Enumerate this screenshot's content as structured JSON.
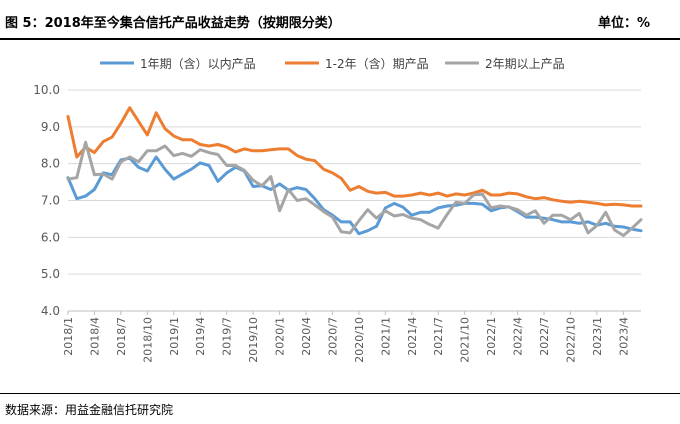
{
  "header": {
    "title": "图 5：2018年至今集合信托产品收益走势（按期限分类）",
    "unit": "单位：%"
  },
  "footer": {
    "source": "数据来源：用益金融信托研究院"
  },
  "colors": {
    "blue": "#5B9BD5",
    "orange": "#ED7D31",
    "gray": "#A5A5A5",
    "grid": "#D9D9D9",
    "axis": "#BFBFBF",
    "text": "#595959"
  },
  "chart_data": {
    "type": "line",
    "ylim": [
      4.0,
      10.0
    ],
    "yticks": [
      "4.0",
      "5.0",
      "6.0",
      "7.0",
      "8.0",
      "9.0",
      "10.0"
    ],
    "legend_position": "top",
    "x": [
      "2018/1",
      "2018/2",
      "2018/3",
      "2018/4",
      "2018/5",
      "2018/6",
      "2018/7",
      "2018/8",
      "2018/9",
      "2018/10",
      "2018/11",
      "2018/12",
      "2019/1",
      "2019/2",
      "2019/3",
      "2019/4",
      "2019/5",
      "2019/6",
      "2019/7",
      "2019/8",
      "2019/9",
      "2019/10",
      "2019/11",
      "2019/12",
      "2020/1",
      "2020/2",
      "2020/3",
      "2020/4",
      "2020/5",
      "2020/6",
      "2020/7",
      "2020/8",
      "2020/9",
      "2020/10",
      "2020/11",
      "2020/12",
      "2021/1",
      "2021/2",
      "2021/3",
      "2021/4",
      "2021/5",
      "2021/6",
      "2021/7",
      "2021/8",
      "2021/9",
      "2021/10",
      "2021/11",
      "2021/12",
      "2022/1",
      "2022/2",
      "2022/3",
      "2022/4",
      "2022/5",
      "2022/6",
      "2022/7",
      "2022/8",
      "2022/9",
      "2022/10",
      "2022/11",
      "2022/12",
      "2023/1",
      "2023/2",
      "2023/3",
      "2023/4",
      "2023/5",
      "2023/6"
    ],
    "x_tick_labels": [
      "2018/1",
      "2018/4",
      "2018/7",
      "2018/10",
      "2019/1",
      "2019/4",
      "2019/7",
      "2019/10",
      "2020/1",
      "2020/4",
      "2020/7",
      "2020/10",
      "2021/1",
      "2021/4",
      "2021/7",
      "2021/10",
      "2022/1",
      "2022/4",
      "2022/7",
      "2022/10",
      "2023/1",
      "2023/4"
    ],
    "series": [
      {
        "name": "1年期（含）以内产品",
        "color": "#5B9BD5",
        "values": [
          7.62,
          7.05,
          7.12,
          7.3,
          7.75,
          7.7,
          8.1,
          8.15,
          7.9,
          7.8,
          8.18,
          7.85,
          7.58,
          7.72,
          7.85,
          8.02,
          7.95,
          7.52,
          7.75,
          7.9,
          7.8,
          7.38,
          7.4,
          7.3,
          7.45,
          7.28,
          7.35,
          7.3,
          7.05,
          6.75,
          6.6,
          6.42,
          6.42,
          6.1,
          6.18,
          6.3,
          6.8,
          6.92,
          6.82,
          6.6,
          6.68,
          6.68,
          6.8,
          6.85,
          6.87,
          6.92,
          6.92,
          6.9,
          6.72,
          6.8,
          6.83,
          6.7,
          6.55,
          6.55,
          6.52,
          6.48,
          6.42,
          6.42,
          6.38,
          6.42,
          6.33,
          6.38,
          6.3,
          6.28,
          6.22,
          6.18
        ]
      },
      {
        "name": "1-2年（含）期产品",
        "color": "#ED7D31",
        "values": [
          9.28,
          8.18,
          8.45,
          8.3,
          8.6,
          8.72,
          9.1,
          9.52,
          9.15,
          8.78,
          9.38,
          8.95,
          8.75,
          8.65,
          8.65,
          8.52,
          8.48,
          8.52,
          8.45,
          8.32,
          8.4,
          8.35,
          8.35,
          8.38,
          8.4,
          8.4,
          8.22,
          8.12,
          8.08,
          7.85,
          7.75,
          7.6,
          7.28,
          7.38,
          7.25,
          7.2,
          7.22,
          7.12,
          7.12,
          7.15,
          7.2,
          7.15,
          7.2,
          7.12,
          7.18,
          7.15,
          7.2,
          7.28,
          7.15,
          7.15,
          7.2,
          7.18,
          7.1,
          7.05,
          7.08,
          7.02,
          6.98,
          6.95,
          6.98,
          6.95,
          6.92,
          6.88,
          6.9,
          6.88,
          6.85,
          6.85
        ]
      },
      {
        "name": "2年期以上产品",
        "color": "#A5A5A5",
        "values": [
          7.58,
          7.62,
          8.58,
          7.7,
          7.72,
          7.58,
          8.05,
          8.18,
          8.05,
          8.35,
          8.35,
          8.48,
          8.22,
          8.28,
          8.2,
          8.38,
          8.3,
          8.25,
          7.95,
          7.95,
          7.82,
          7.55,
          7.4,
          7.65,
          6.72,
          7.3,
          7.0,
          7.05,
          6.88,
          6.7,
          6.55,
          6.15,
          6.12,
          6.45,
          6.75,
          6.52,
          6.72,
          6.58,
          6.62,
          6.52,
          6.48,
          6.35,
          6.25,
          6.62,
          6.95,
          6.92,
          7.15,
          7.18,
          6.8,
          6.85,
          6.82,
          6.75,
          6.6,
          6.72,
          6.38,
          6.6,
          6.6,
          6.48,
          6.65,
          6.12,
          6.32,
          6.68,
          6.2,
          6.05,
          6.25,
          6.48
        ]
      }
    ]
  }
}
